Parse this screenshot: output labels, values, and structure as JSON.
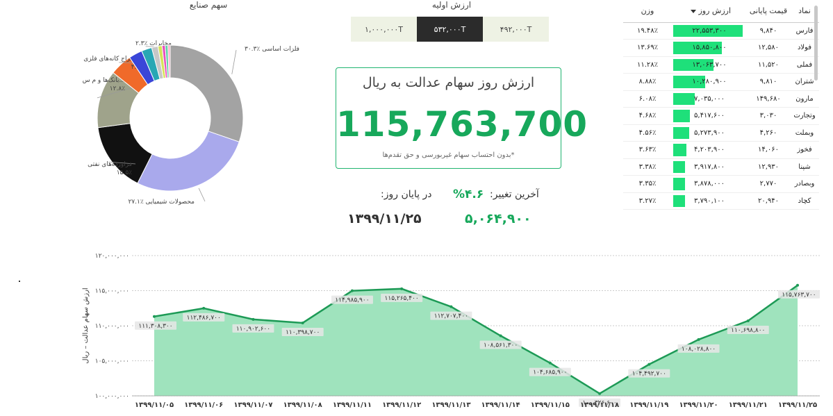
{
  "donut": {
    "title": "سهم صنایع",
    "colors": [
      "#a3a3a3",
      "#a9a9ec",
      "#111111",
      "#9fa38b",
      "#f06a2a",
      "#3a46d8",
      "#28a7b4",
      "#c7c7c7",
      "#d6e25a",
      "#e84fc0",
      "#5fd1a6",
      "#ffa9c7"
    ]
  },
  "initial_value": {
    "title": "ارزش اولیه",
    "options": [
      {
        "label": "۱,۰۰۰,۰۰۰T",
        "active": false
      },
      {
        "label": "۵۳۲,۰۰۰T",
        "active": true
      },
      {
        "label": "۴۹۲,۰۰۰T",
        "active": false
      }
    ]
  },
  "kpi": {
    "title": "ارزش روز سهام عدالت به ریال",
    "value": "115,763,700",
    "note": "*بدون احتساب سهام غیربورسی و حق تقدم‌ها"
  },
  "change": {
    "label": "آخرین تغییر:",
    "value": "%۴.۶",
    "eod_label": "در پایان روز:",
    "eod_value": "۵,۰۶۴,۹۰۰",
    "date": "۱۳۹۹/۱۱/۲۵"
  },
  "table": {
    "headers": {
      "symbol": "نماد",
      "price": "قیمت پایانی",
      "value": "ارزش روز",
      "weight": "وزن"
    },
    "rows": [
      {
        "symbol": "فارس",
        "price": "۹,۸۴۰",
        "value": "۲۲,۵۵۳,۳۰۰",
        "value_num": 22553300,
        "weight": "۱۹.۴۸٪"
      },
      {
        "symbol": "فولاد",
        "price": "۱۲,۵۸۰",
        "value": "۱۵,۸۵۰,۸۰۰",
        "value_num": 15850800,
        "weight": "۱۳.۶۹٪"
      },
      {
        "symbol": "فملی",
        "price": "۱۱,۵۲۰",
        "value": "۱۳,۰۶۳,۷۰۰",
        "value_num": 13063700,
        "weight": "۱۱.۲۸٪"
      },
      {
        "symbol": "شتران",
        "price": "۹,۸۱۰",
        "value": "۱۰,۲۸۰,۹۰۰",
        "value_num": 10280900,
        "weight": "۸.۸۸٪"
      },
      {
        "symbol": "مارون",
        "price": "۱۴۹,۶۸۰",
        "value": "۷,۰۳۵,۰۰۰",
        "value_num": 7035000,
        "weight": "۶.۰۸٪"
      },
      {
        "symbol": "وتجارت",
        "price": "۳,۰۳۰",
        "value": "۵,۴۱۷,۶۰۰",
        "value_num": 5417600,
        "weight": "۴.۶۸٪"
      },
      {
        "symbol": "وبملت",
        "price": "۴,۲۶۰",
        "value": "۵,۲۷۳,۹۰۰",
        "value_num": 5273900,
        "weight": "۴.۵۶٪"
      },
      {
        "symbol": "فخوز",
        "price": "۱۴,۰۶۰",
        "value": "۴,۲۰۳,۹۰۰",
        "value_num": 4203900,
        "weight": "۳.۶۳٪"
      },
      {
        "symbol": "شپنا",
        "price": "۱۲,۹۳۰",
        "value": "۳,۹۱۷,۸۰۰",
        "value_num": 3917800,
        "weight": "۳.۳۸٪"
      },
      {
        "symbol": "وبصادر",
        "price": "۲,۷۷۰",
        "value": "۳,۸۷۸,۰۰۰",
        "value_num": 3878000,
        "weight": "۳.۳۵٪"
      },
      {
        "symbol": "کچاد",
        "price": "۲۰,۹۴۰",
        "value": "۳,۷۹۰,۱۰۰",
        "value_num": 3790100,
        "weight": "۳.۲۷٪"
      }
    ]
  },
  "chart_data": [
    {
      "type": "pie",
      "title": "سهم صنایع",
      "slices": [
        {
          "label": "فلزات اساسی",
          "value": 30.3,
          "display": "۳۰.۳٪",
          "color": "#a3a3a3"
        },
        {
          "label": "محصولات شیمیایی",
          "value": 27.1,
          "display": "۲۷.۱٪",
          "color": "#a9a9ec"
        },
        {
          "label": "فراورده‌های نفتی",
          "value": 15.5,
          "display": "۱۵.۵٪",
          "color": "#111111"
        },
        {
          "label": "بانک‌ها و م س...",
          "value": 12.8,
          "display": "۱۲.۸٪",
          "color": "#9fa38b"
        },
        {
          "label": "استخراج کانه‌های فلزی",
          "value": 4.9,
          "display": "۴.۹٪",
          "color": "#f06a2a"
        },
        {
          "label": "",
          "value": 3.0,
          "display": "",
          "color": "#3a46d8"
        },
        {
          "label": "مخابرات",
          "value": 2.3,
          "display": "۲.۳٪",
          "color": "#28a7b4"
        },
        {
          "label": "",
          "value": 1.4,
          "display": "",
          "color": "#c7c7c7"
        },
        {
          "label": "",
          "value": 0.9,
          "display": "",
          "color": "#d6e25a"
        },
        {
          "label": "",
          "value": 0.7,
          "display": "",
          "color": "#e84fc0"
        },
        {
          "label": "",
          "value": 0.6,
          "display": "",
          "color": "#5fd1a6"
        },
        {
          "label": "",
          "value": 0.5,
          "display": "",
          "color": "#ffa9c7"
        }
      ]
    },
    {
      "type": "area",
      "ylabel": "ارزش سهام عدالت – ریال",
      "ylim": [
        100000000,
        120000000
      ],
      "yticks": [
        {
          "value": 100000000,
          "label": "۱۰۰,۰۰۰,۰۰۰"
        },
        {
          "value": 105000000,
          "label": "۱۰۵,۰۰۰,۰۰۰"
        },
        {
          "value": 110000000,
          "label": "۱۱۰,۰۰۰,۰۰۰"
        },
        {
          "value": 115000000,
          "label": "۱۱۵,۰۰۰,۰۰۰"
        },
        {
          "value": 120000000,
          "label": "۱۲۰,۰۰۰,۰۰۰"
        }
      ],
      "x": [
        "۱۳۹۹/۱۱/۰۵",
        "۱۳۹۹/۱۱/۰۶",
        "۱۳۹۹/۱۱/۰۷",
        "۱۳۹۹/۱۱/۰۸",
        "۱۳۹۹/۱۱/۱۱",
        "۱۳۹۹/۱۱/۱۲",
        "۱۳۹۹/۱۱/۱۳",
        "۱۳۹۹/۱۱/۱۴",
        "۱۳۹۹/۱۱/۱۵",
        "۱۳۹۹/۱۱/۱۸",
        "۱۳۹۹/۱۱/۱۹",
        "۱۳۹۹/۱۱/۲۰",
        "۱۳۹۹/۱۱/۲۱",
        "۱۳۹۹/۱۱/۲۵"
      ],
      "values": [
        111308300,
        112486700,
        110902600,
        110398700,
        114985900,
        115265400,
        112707400,
        108561300,
        104685900,
        100326600,
        104492700,
        108028800,
        110698800,
        115763700
      ],
      "labels": [
        "۱۱۱,۳۰۸,۳۰۰",
        "۱۱۲,۴۸۶,۷۰۰",
        "۱۱۰,۹۰۲,۶۰۰",
        "۱۱۰,۳۹۸,۷۰۰",
        "۱۱۴,۹۸۵,۹۰۰",
        "۱۱۵,۲۶۵,۴۰۰",
        "۱۱۲,۷۰۷,۴۰۰",
        "۱۰۸,۵۶۱,۳۰۰",
        "۱۰۴,۶۸۵,۹۰۰",
        "۱۰۰,۳۲۶,۶۰۰",
        "۱۰۴,۴۹۲,۷۰۰",
        "۱۰۸,۰۲۸,۸۰۰",
        "۱۱۰,۶۹۸,۸۰۰",
        "۱۱۵,۷۶۳,۷۰۰"
      ],
      "line_color": "#1d9a56",
      "fill_color": "#9fe3bd",
      "grid": true
    }
  ]
}
